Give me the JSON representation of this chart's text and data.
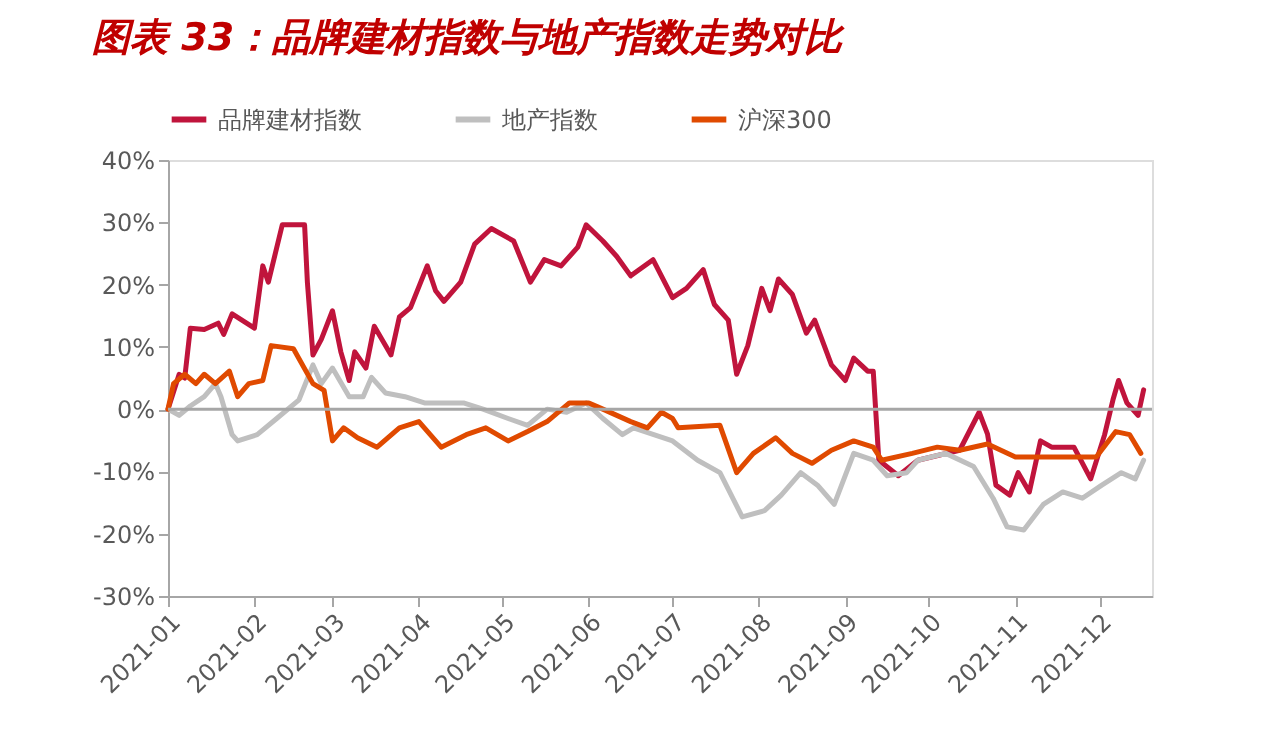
{
  "chart_data": {
    "type": "line",
    "title": "图表 33：品牌建材指数与地产指数走势对比",
    "xlim": [
      "2021-01-01",
      "2021-12-20"
    ],
    "xticks": [
      {
        "value": "2021-01-01",
        "label": "2021-01"
      },
      {
        "value": "2021-02-01",
        "label": "2021-02"
      },
      {
        "value": "2021-03-01",
        "label": "2021-03"
      },
      {
        "value": "2021-04-01",
        "label": "2021-04"
      },
      {
        "value": "2021-05-01",
        "label": "2021-05"
      },
      {
        "value": "2021-06-01",
        "label": "2021-06"
      },
      {
        "value": "2021-07-01",
        "label": "2021-07"
      },
      {
        "value": "2021-08-01",
        "label": "2021-08"
      },
      {
        "value": "2021-09-01",
        "label": "2021-09"
      },
      {
        "value": "2021-10-01",
        "label": "2021-10"
      },
      {
        "value": "2021-11-01",
        "label": "2021-11"
      },
      {
        "value": "2021-12-01",
        "label": "2021-12"
      }
    ],
    "ylim": [
      -30,
      40
    ],
    "yticks": [
      {
        "value": -30,
        "label": "-30%"
      },
      {
        "value": -20,
        "label": "-20%"
      },
      {
        "value": -10,
        "label": "-10%"
      },
      {
        "value": 0,
        "label": "0%"
      },
      {
        "value": 10,
        "label": "10%"
      },
      {
        "value": 20,
        "label": "20%"
      },
      {
        "value": 30,
        "label": "30%"
      },
      {
        "value": 40,
        "label": "40%"
      }
    ],
    "grid": false,
    "legend": "top",
    "ref_lines": [
      {
        "axis": "y",
        "value": 0,
        "color": "#a6a6a6"
      }
    ],
    "series": [
      {
        "name": "品牌建材指数",
        "color": "#c0143c",
        "x": [
          "2021-01-01",
          "2021-01-05",
          "2021-01-07",
          "2021-01-09",
          "2021-01-14",
          "2021-01-19",
          "2021-01-21",
          "2021-01-24",
          "2021-02-01",
          "2021-02-04",
          "2021-02-06",
          "2021-02-11",
          "2021-02-19",
          "2021-02-20",
          "2021-02-22",
          "2021-02-25",
          "2021-03-01",
          "2021-03-04",
          "2021-03-07",
          "2021-03-09",
          "2021-03-13",
          "2021-03-16",
          "2021-03-22",
          "2021-03-25",
          "2021-03-29",
          "2021-04-04",
          "2021-04-07",
          "2021-04-10",
          "2021-04-16",
          "2021-04-21",
          "2021-04-27",
          "2021-05-05",
          "2021-05-11",
          "2021-05-16",
          "2021-05-22",
          "2021-05-28",
          "2021-05-31",
          "2021-06-06",
          "2021-06-11",
          "2021-06-16",
          "2021-06-24",
          "2021-07-01",
          "2021-07-06",
          "2021-07-12",
          "2021-07-16",
          "2021-07-21",
          "2021-07-24",
          "2021-07-28",
          "2021-08-02",
          "2021-08-05",
          "2021-08-08",
          "2021-08-13",
          "2021-08-18",
          "2021-08-21",
          "2021-08-27",
          "2021-09-01",
          "2021-09-04",
          "2021-09-09",
          "2021-09-11",
          "2021-09-13",
          "2021-09-20",
          "2021-09-27",
          "2021-10-12",
          "2021-10-19",
          "2021-10-22",
          "2021-10-25",
          "2021-10-30",
          "2021-11-02",
          "2021-11-06",
          "2021-11-10",
          "2021-11-14",
          "2021-11-22",
          "2021-11-28",
          "2021-12-03",
          "2021-12-06",
          "2021-12-08",
          "2021-12-11",
          "2021-12-15",
          "2021-12-17"
        ],
        "values": [
          0,
          5.6,
          5,
          13,
          12.8,
          13.8,
          12,
          15.3,
          13,
          23,
          20.4,
          29.6,
          29.6,
          20.4,
          8.7,
          11.2,
          15.8,
          9.2,
          4.6,
          9.2,
          6.6,
          13.3,
          8.7,
          14.8,
          16.3,
          23,
          19,
          17.3,
          20.4,
          26.5,
          29,
          27,
          20.4,
          24,
          23,
          26,
          29.6,
          27,
          24.5,
          21.4,
          24,
          17.9,
          19.4,
          22.4,
          16.8,
          14.3,
          5.6,
          10.2,
          19.4,
          15.8,
          20.9,
          18.4,
          12.2,
          14.3,
          7.1,
          4.6,
          8.2,
          6.1,
          6.1,
          -8.2,
          -10.7,
          -8.2,
          -6.6,
          -0.5,
          -4,
          -12.2,
          -13.8,
          -10.2,
          -13.3,
          -5.1,
          -6.1,
          -6.1,
          -11.2,
          -4.1,
          1.5,
          4.6,
          1,
          -1,
          3.1
        ]
      },
      {
        "name": "地产指数",
        "color": "#bfbfbf",
        "x": [
          "2021-01-01",
          "2021-01-05",
          "2021-01-09",
          "2021-01-14",
          "2021-01-18",
          "2021-01-20",
          "2021-01-24",
          "2021-01-26",
          "2021-02-02",
          "2021-02-09",
          "2021-02-17",
          "2021-02-22",
          "2021-02-25",
          "2021-03-01",
          "2021-03-07",
          "2021-03-12",
          "2021-03-15",
          "2021-03-20",
          "2021-03-27",
          "2021-04-03",
          "2021-04-10",
          "2021-04-17",
          "2021-04-24",
          "2021-05-03",
          "2021-05-10",
          "2021-05-17",
          "2021-05-24",
          "2021-05-31",
          "2021-06-06",
          "2021-06-13",
          "2021-06-17",
          "2021-07-01",
          "2021-07-10",
          "2021-07-18",
          "2021-07-26",
          "2021-08-03",
          "2021-08-09",
          "2021-08-16",
          "2021-08-22",
          "2021-08-28",
          "2021-09-04",
          "2021-09-11",
          "2021-09-16",
          "2021-09-23",
          "2021-09-27",
          "2021-10-07",
          "2021-10-17",
          "2021-10-24",
          "2021-10-29",
          "2021-11-04",
          "2021-11-11",
          "2021-11-18",
          "2021-11-25",
          "2021-12-02",
          "2021-12-09",
          "2021-12-14",
          "2021-12-17"
        ],
        "values": [
          0,
          -1,
          0.5,
          2,
          4.1,
          2,
          -4.1,
          -5.1,
          -4.1,
          -1.5,
          1.5,
          7.1,
          4.1,
          6.6,
          2,
          2,
          5.1,
          2.6,
          2,
          1,
          1,
          1,
          0,
          -1.5,
          -2.6,
          0,
          -0.5,
          1,
          -1.5,
          -4.1,
          -3,
          -5.1,
          -8.2,
          -10.2,
          -17.3,
          -16.3,
          -13.8,
          -10.2,
          -12.2,
          -15.3,
          -7.1,
          -8.2,
          -10.7,
          -10.2,
          -8.2,
          -7.1,
          -9.2,
          -14.3,
          -18.9,
          -19.4,
          -15.3,
          -13.3,
          -14.3,
          -12.2,
          -10.2,
          -11.2,
          -8.2
        ]
      },
      {
        "name": "沪深300",
        "color": "#e04a00",
        "x": [
          "2021-01-01",
          "2021-01-03",
          "2021-01-07",
          "2021-01-11",
          "2021-01-14",
          "2021-01-18",
          "2021-01-23",
          "2021-01-26",
          "2021-01-30",
          "2021-02-04",
          "2021-02-07",
          "2021-02-15",
          "2021-02-22",
          "2021-02-26",
          "2021-03-01",
          "2021-03-05",
          "2021-03-10",
          "2021-03-17",
          "2021-03-25",
          "2021-04-01",
          "2021-04-09",
          "2021-04-18",
          "2021-04-25",
          "2021-05-03",
          "2021-05-10",
          "2021-05-17",
          "2021-05-25",
          "2021-06-01",
          "2021-06-06",
          "2021-06-16",
          "2021-06-22",
          "2021-06-27",
          "2021-07-01",
          "2021-07-03",
          "2021-07-18",
          "2021-07-24",
          "2021-07-30",
          "2021-08-07",
          "2021-08-13",
          "2021-08-20",
          "2021-08-27",
          "2021-09-04",
          "2021-09-11",
          "2021-09-14",
          "2021-09-25",
          "2021-10-04",
          "2021-10-12",
          "2021-10-22",
          "2021-11-01",
          "2021-11-15",
          "2021-11-30",
          "2021-12-07",
          "2021-12-12",
          "2021-12-16"
        ],
        "values": [
          0,
          4.1,
          5.6,
          4.1,
          5.6,
          4.1,
          6.1,
          2,
          4.1,
          4.6,
          10.2,
          9.7,
          4.1,
          3,
          -5.1,
          -3,
          -4.6,
          -6.1,
          -3,
          -2,
          -6.1,
          -4.1,
          -3,
          -5.1,
          -3.6,
          -2,
          1,
          1,
          0,
          -2,
          -3,
          -0.5,
          -1.5,
          -3,
          -2.6,
          -10.2,
          -7.1,
          -4.6,
          -7.1,
          -8.7,
          -6.6,
          -5.1,
          -6.1,
          -8.2,
          -7.1,
          -6.1,
          -6.6,
          -5.6,
          -7.7,
          -7.7,
          -7.7,
          -3.6,
          -4.1,
          -7.1
        ]
      }
    ]
  }
}
